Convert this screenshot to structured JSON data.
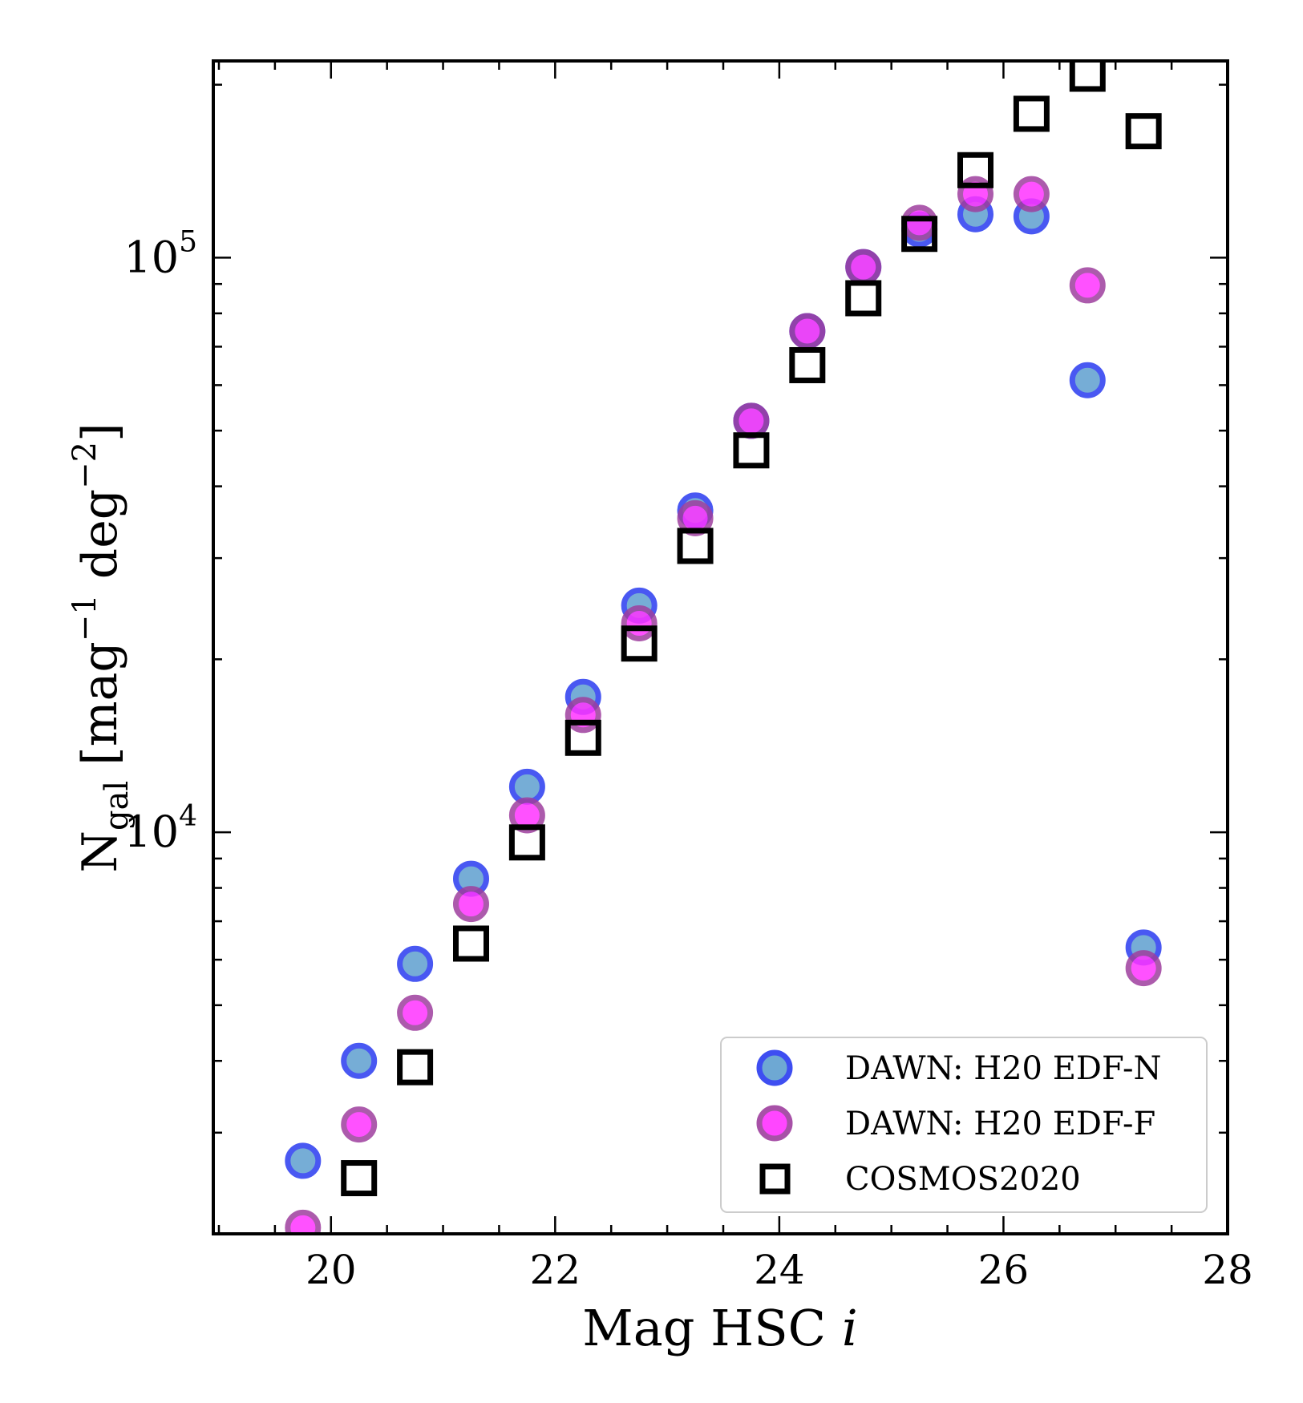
{
  "chart_data": {
    "type": "scatter",
    "title": "",
    "xlabel_main": "Mag HSC ",
    "xlabel_italic": "i",
    "ylabel_base": "N",
    "ylabel_sub": "gal",
    "ylabel_mid": " [mag",
    "ylabel_exp1": "−1",
    "ylabel_mid2": " deg",
    "ylabel_exp2": "−2",
    "ylabel_end": "]",
    "xlim": [
      18.95,
      28
    ],
    "ylim": [
      2000,
      220000
    ],
    "yscale": "log",
    "x_ticks": [
      20,
      22,
      24,
      26,
      28
    ],
    "x_tick_labels": [
      "20",
      "22",
      "24",
      "26",
      "28"
    ],
    "y_major_ticks": [
      10000,
      100000
    ],
    "y_major_labels": [
      {
        "base": "10",
        "exp": "4"
      },
      {
        "base": "10",
        "exp": "5"
      }
    ],
    "legend_position": "lower-right",
    "series": [
      {
        "name": "DAWN: H20 EDF-N",
        "marker": "circle",
        "fill": "#5f9fcf",
        "edge": "#2a3bf0",
        "x": [
          19.75,
          20.25,
          20.75,
          21.25,
          21.75,
          22.25,
          22.75,
          23.25,
          23.75,
          24.25,
          24.75,
          25.25,
          25.75,
          26.25,
          26.75,
          27.25
        ],
        "y": [
          2680,
          4000,
          5900,
          8300,
          12000,
          17200,
          24800,
          36300,
          52000,
          74500,
          96300,
          112000,
          119000,
          118000,
          61200,
          6300
        ]
      },
      {
        "name": "DAWN: H20 EDF-F",
        "marker": "circle",
        "fill": "#ff33ff",
        "edge": "#9e3f9e",
        "x": [
          19.75,
          20.25,
          20.75,
          21.25,
          21.75,
          22.25,
          22.75,
          23.25,
          23.75,
          24.25,
          24.75,
          25.25,
          25.75,
          26.25,
          26.75,
          27.25
        ],
        "y": [
          2050,
          3100,
          4850,
          7500,
          10700,
          16000,
          23100,
          35200,
          52000,
          74500,
          96300,
          115000,
          129000,
          129000,
          89500,
          5800
        ]
      },
      {
        "name": "COSMOS2020",
        "marker": "square",
        "fill": "none",
        "edge": "#000000",
        "x": [
          20.25,
          20.75,
          21.25,
          21.75,
          22.25,
          22.75,
          23.25,
          23.75,
          24.25,
          24.75,
          25.25,
          25.75,
          26.25,
          26.75,
          27.25
        ],
        "y": [
          2500,
          3900,
          6400,
          9600,
          14600,
          21300,
          31500,
          46200,
          65000,
          85000,
          110000,
          142000,
          178000,
          209000,
          166000
        ]
      }
    ]
  }
}
